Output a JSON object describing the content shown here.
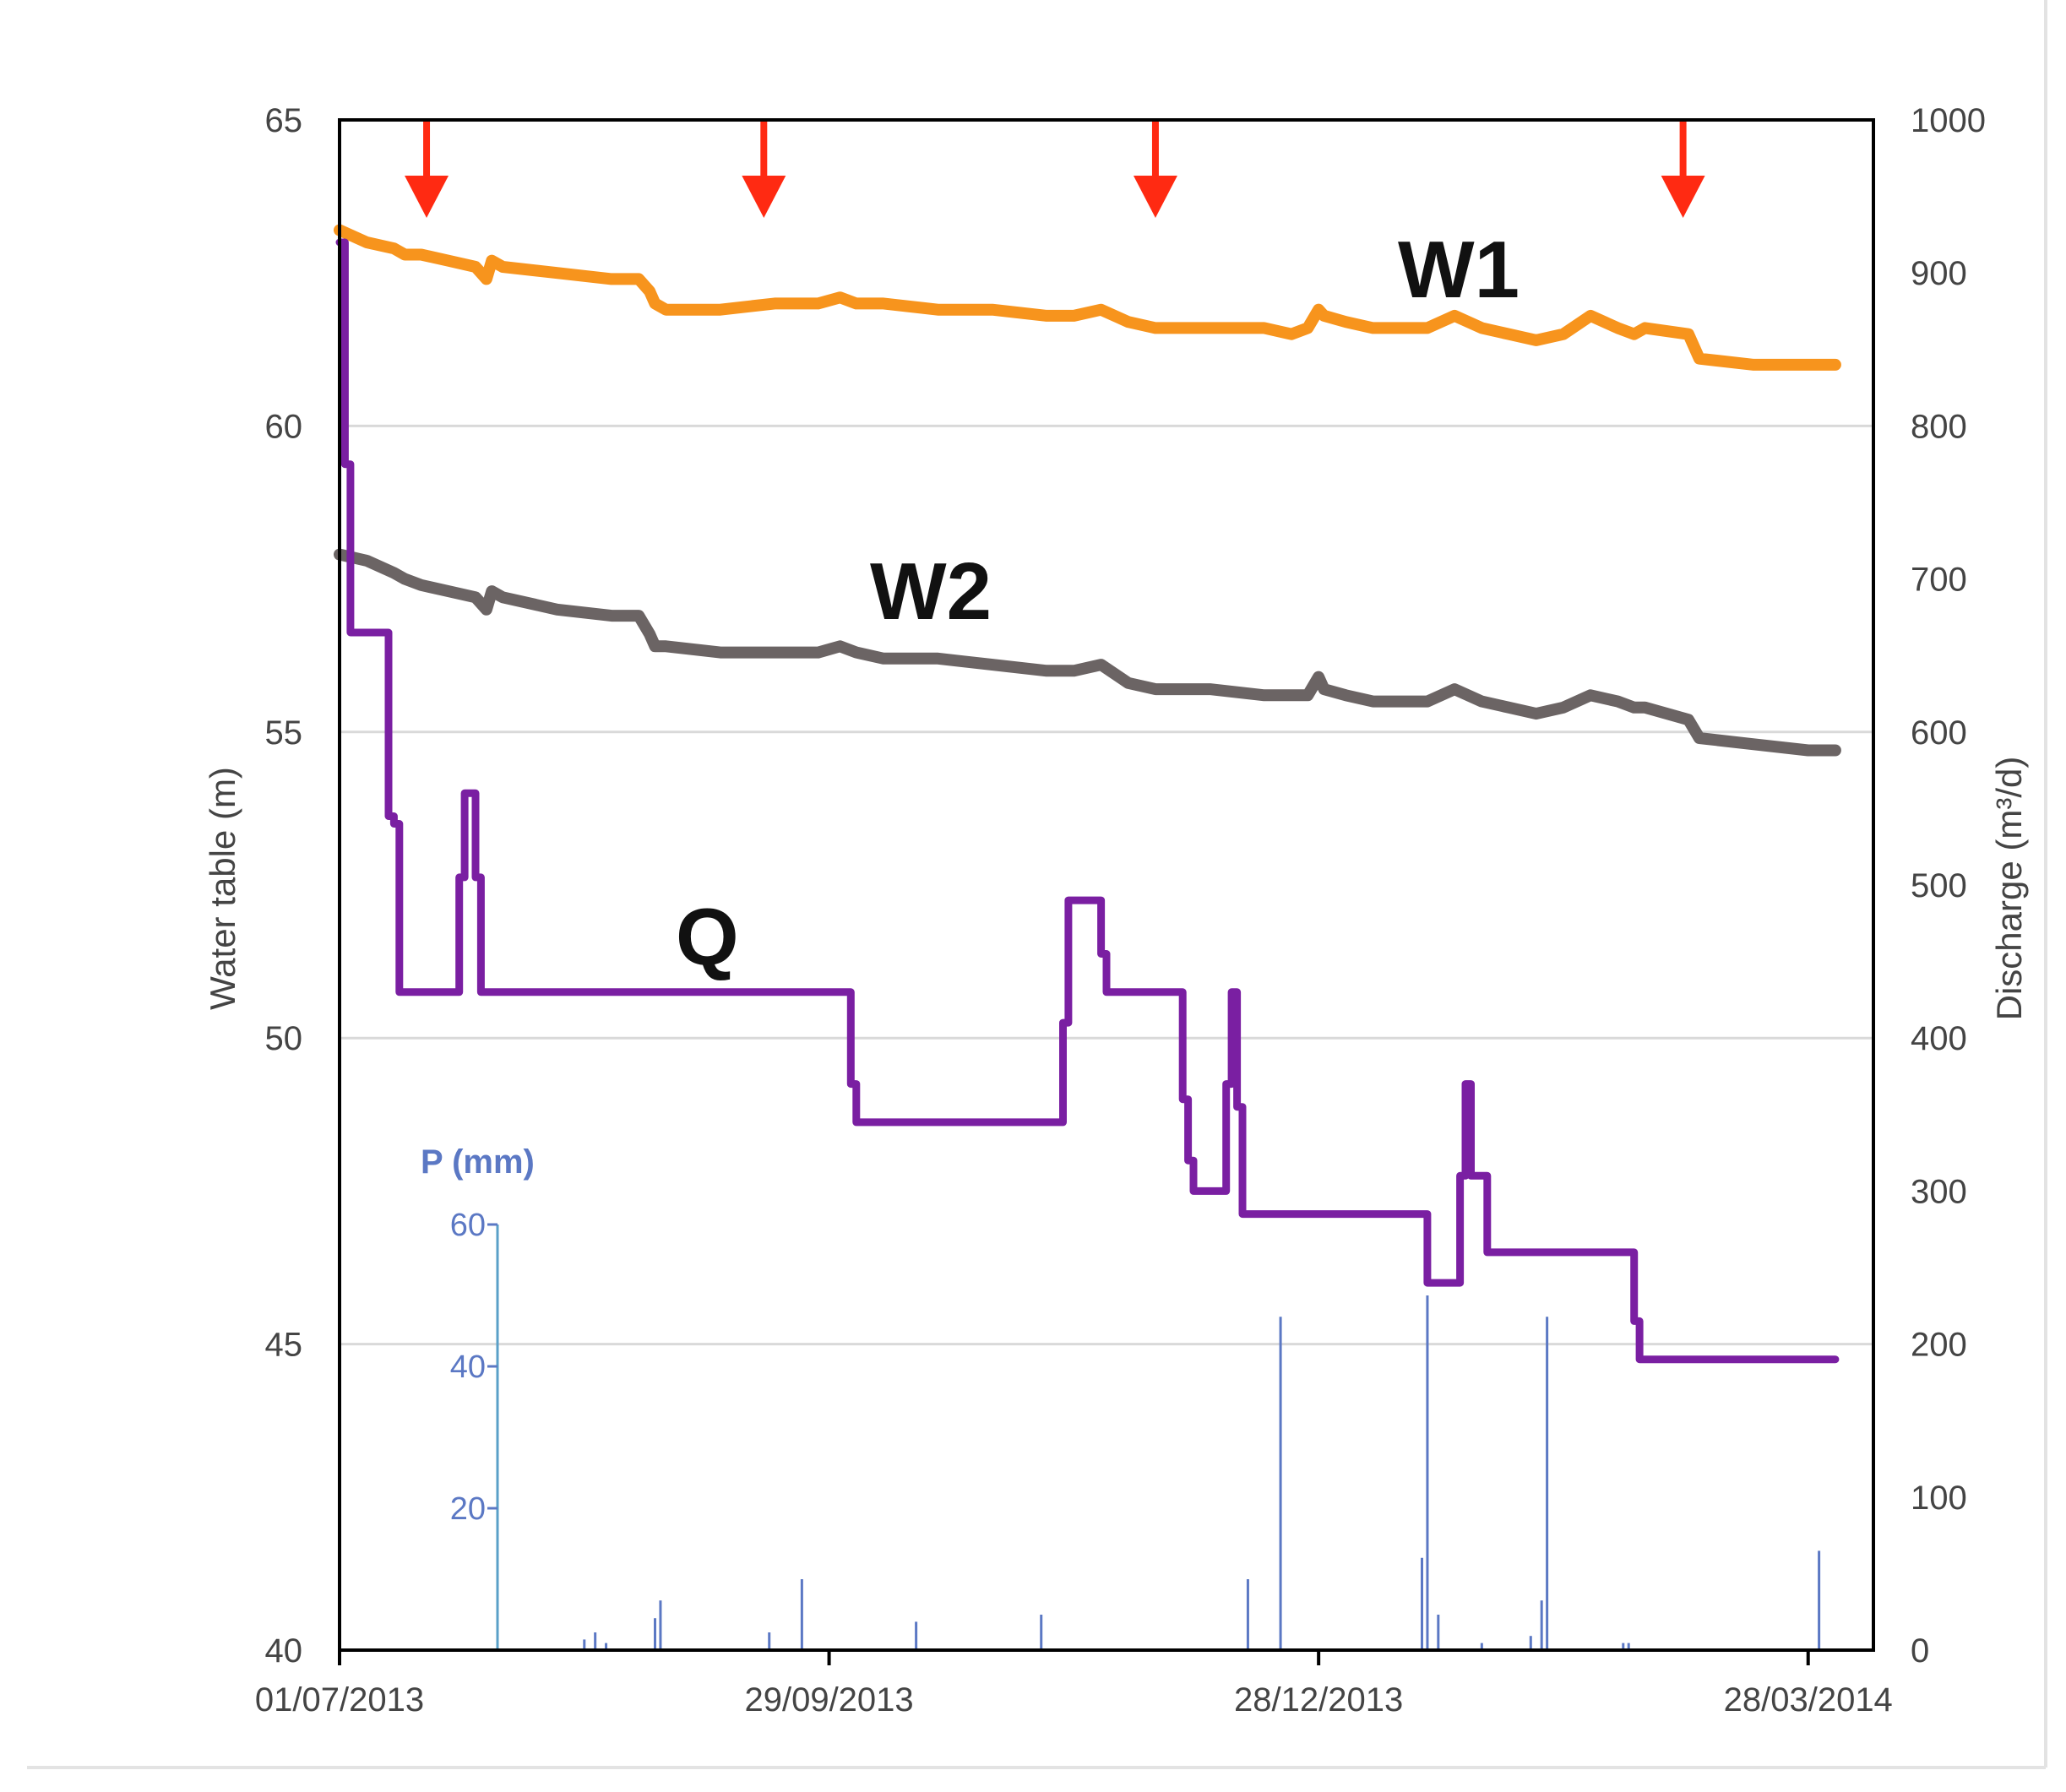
{
  "chart_data": {
    "type": "line",
    "title": "",
    "xlabel": "",
    "ylabel": "Water table (m)",
    "y2label": "Discharge (m³/d)",
    "ylim": [
      40,
      65
    ],
    "y2lim": [
      0,
      1000
    ],
    "xlim_days": [
      0,
      282
    ],
    "date_ticks": [
      {
        "label": "01/07/2013",
        "day": 0
      },
      {
        "label": "29/09/2013",
        "day": 90
      },
      {
        "label": "28/12/2013",
        "day": 180
      },
      {
        "label": "28/03/2014",
        "day": 270
      }
    ],
    "yticks": [
      40,
      45,
      50,
      55,
      60,
      65
    ],
    "y2ticks": [
      0,
      100,
      200,
      300,
      400,
      500,
      600,
      700,
      800,
      900,
      1000
    ],
    "grid": true,
    "colors": {
      "w1": "#f7941d",
      "w2": "#6b6464",
      "q": "#7a1fa2",
      "p": "#5b78c4",
      "arrow": "#ff2a12",
      "grid": "#d9d9d9",
      "axis": "#000000"
    },
    "series": [
      {
        "name": "W1",
        "label": "W1",
        "axis": "left",
        "x": [
          0,
          5,
          10,
          12,
          15,
          20,
          25,
          27,
          28,
          30,
          40,
          50,
          55,
          57,
          58,
          60,
          70,
          80,
          88,
          92,
          95,
          100,
          110,
          120,
          130,
          135,
          140,
          145,
          150,
          160,
          170,
          175,
          178,
          180,
          181,
          185,
          190,
          195,
          200,
          205,
          210,
          215,
          220,
          225,
          230,
          235,
          238,
          240,
          248,
          250,
          260,
          270,
          275
        ],
        "y": [
          63.2,
          63.0,
          62.9,
          62.8,
          62.8,
          62.7,
          62.6,
          62.4,
          62.7,
          62.6,
          62.5,
          62.4,
          62.4,
          62.2,
          62.0,
          61.9,
          61.9,
          62.0,
          62.0,
          62.1,
          62.0,
          62.0,
          61.9,
          61.9,
          61.8,
          61.8,
          61.9,
          61.7,
          61.6,
          61.6,
          61.6,
          61.5,
          61.6,
          61.9,
          61.8,
          61.7,
          61.6,
          61.6,
          61.6,
          61.8,
          61.6,
          61.5,
          61.4,
          61.5,
          61.8,
          61.6,
          61.5,
          61.6,
          61.5,
          61.1,
          61.0,
          61.0,
          61.0
        ]
      },
      {
        "name": "W2",
        "label": "W2",
        "axis": "left",
        "x": [
          0,
          5,
          10,
          12,
          15,
          20,
          25,
          27,
          28,
          30,
          40,
          50,
          55,
          57,
          58,
          60,
          70,
          80,
          88,
          92,
          95,
          100,
          110,
          120,
          130,
          135,
          140,
          145,
          150,
          160,
          170,
          175,
          178,
          180,
          181,
          185,
          190,
          195,
          200,
          205,
          210,
          215,
          220,
          225,
          230,
          235,
          238,
          240,
          248,
          250,
          260,
          270,
          275
        ],
        "y": [
          57.9,
          57.8,
          57.6,
          57.5,
          57.4,
          57.3,
          57.2,
          57.0,
          57.3,
          57.2,
          57.0,
          56.9,
          56.9,
          56.6,
          56.4,
          56.4,
          56.3,
          56.3,
          56.3,
          56.4,
          56.3,
          56.2,
          56.2,
          56.1,
          56.0,
          56.0,
          56.1,
          55.8,
          55.7,
          55.7,
          55.6,
          55.6,
          55.6,
          55.9,
          55.7,
          55.6,
          55.5,
          55.5,
          55.5,
          55.7,
          55.5,
          55.4,
          55.3,
          55.4,
          55.6,
          55.5,
          55.4,
          55.4,
          55.2,
          54.9,
          54.8,
          54.7,
          54.7
        ]
      },
      {
        "name": "Q",
        "label": "Q",
        "axis": "right",
        "x": [
          0,
          1,
          1,
          2,
          2,
          9,
          9,
          10,
          10,
          11,
          11,
          22,
          22,
          23,
          23,
          25,
          25,
          26,
          26,
          94,
          94,
          95,
          95,
          133,
          133,
          134,
          134,
          140,
          140,
          141,
          141,
          155,
          155,
          156,
          156,
          157,
          157,
          163,
          163,
          164,
          164,
          165,
          165,
          166,
          166,
          200,
          200,
          206,
          206,
          207,
          207,
          208,
          208,
          211,
          211,
          212,
          212,
          238,
          238,
          239,
          239,
          275
        ],
        "y": [
          920,
          920,
          775,
          775,
          665,
          665,
          545,
          545,
          540,
          540,
          430,
          430,
          505,
          505,
          560,
          560,
          505,
          505,
          430,
          430,
          370,
          370,
          345,
          345,
          410,
          410,
          490,
          490,
          455,
          455,
          430,
          430,
          360,
          360,
          320,
          320,
          300,
          300,
          370,
          370,
          430,
          430,
          355,
          355,
          285,
          285,
          240,
          240,
          310,
          310,
          370,
          370,
          310,
          310,
          260,
          260,
          260,
          260,
          215,
          215,
          190,
          190
        ]
      },
      {
        "name": "P",
        "label": "P (mm)",
        "axis": "p",
        "type": "bar",
        "plim": [
          0,
          60
        ],
        "pticks": [
          20,
          40,
          60
        ],
        "x": [
          45,
          47,
          49,
          58,
          59,
          79,
          85,
          106,
          129,
          167,
          173,
          199,
          200,
          202,
          210,
          219,
          221,
          222,
          236,
          237,
          272
        ],
        "y": [
          1.5,
          2.5,
          1,
          4.5,
          7,
          2.5,
          10,
          4,
          5,
          10,
          47,
          13,
          50,
          5,
          1,
          2,
          7,
          47,
          1,
          1,
          14
        ]
      }
    ],
    "arrows_days": [
      16,
      78,
      150,
      247
    ]
  }
}
